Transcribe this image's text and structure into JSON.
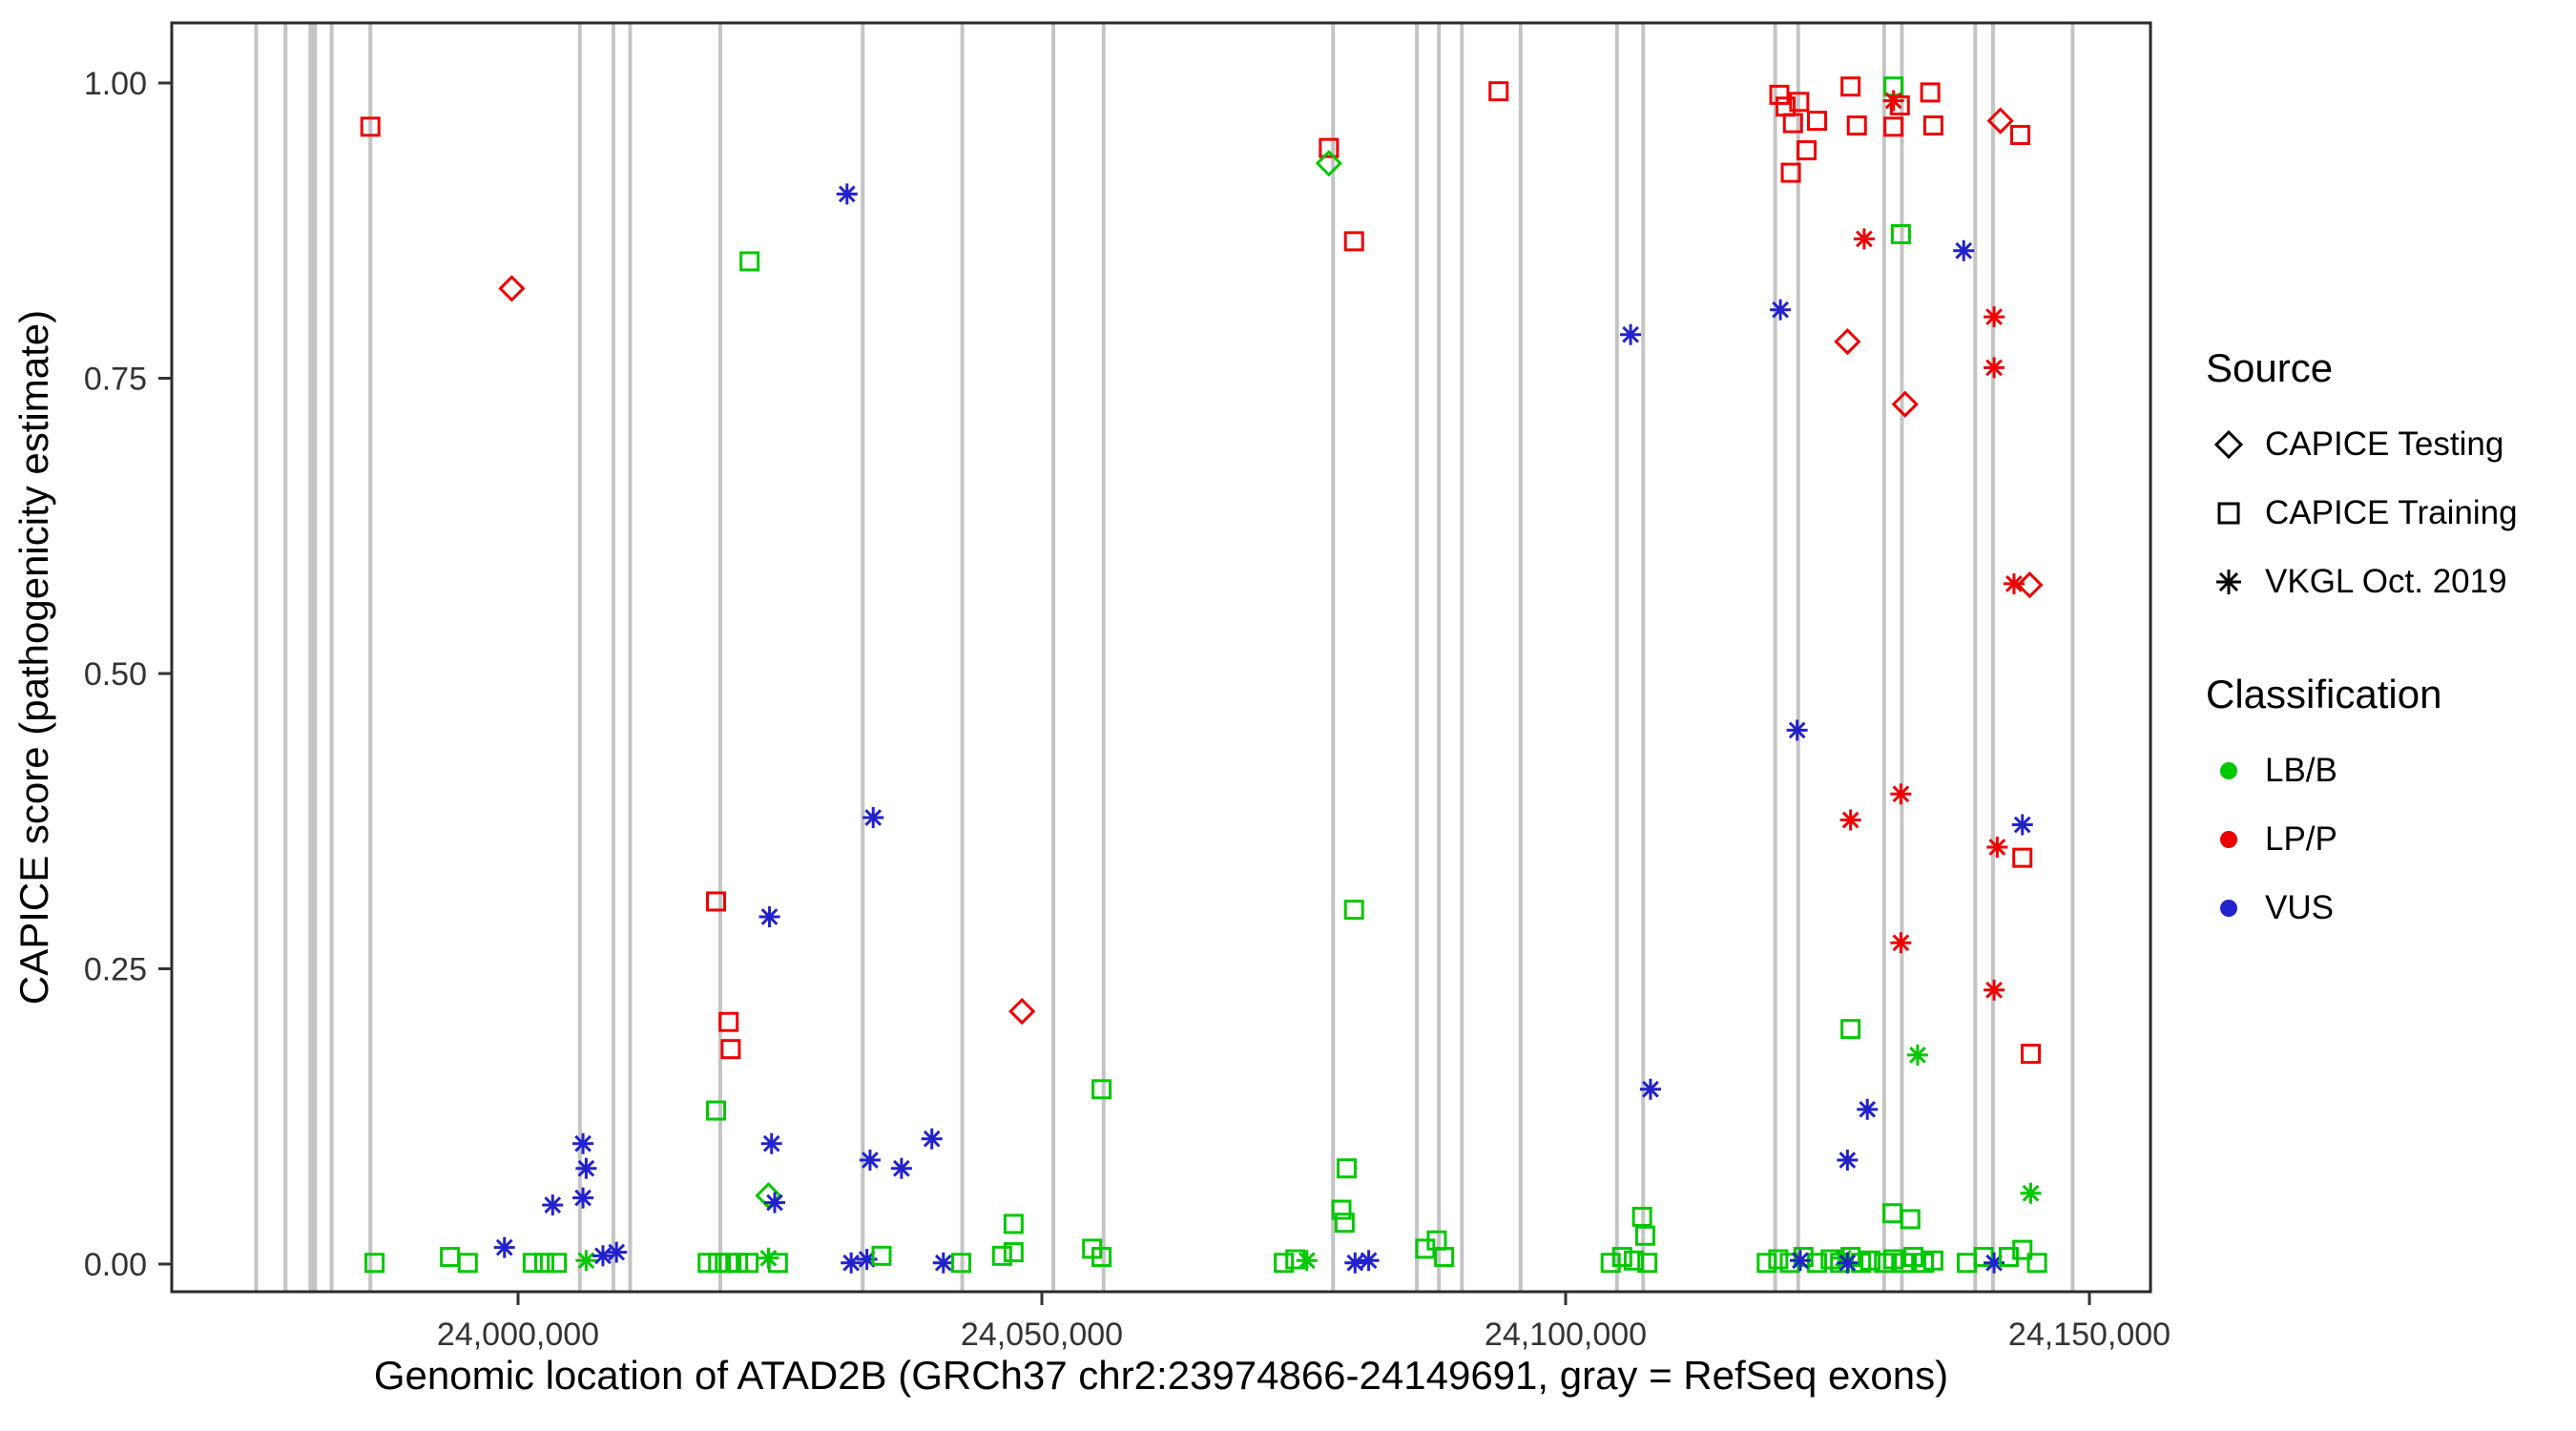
{
  "chart_data": {
    "type": "scatter",
    "title": "",
    "xlabel": "Genomic location of ATAD2B (GRCh37 chr2:23974866-24149691, gray = RefSeq exons)",
    "ylabel": "CAPICE score (pathogenicity estimate)",
    "xlim": [
      23966900,
      24155800
    ],
    "ylim": [
      -0.023,
      1.05
    ],
    "grid": false,
    "x_ticks": [
      {
        "value": 24000000,
        "label": "24,000,000"
      },
      {
        "value": 24050000,
        "label": "24,050,000"
      },
      {
        "value": 24100000,
        "label": "24,100,000"
      },
      {
        "value": 24150000,
        "label": "24,150,000"
      }
    ],
    "y_ticks": [
      {
        "value": 0.0,
        "label": "0.00"
      },
      {
        "value": 0.25,
        "label": "0.25"
      },
      {
        "value": 0.5,
        "label": "0.50"
      },
      {
        "value": 0.75,
        "label": "0.75"
      },
      {
        "value": 1.0,
        "label": "1.00"
      }
    ],
    "colors": {
      "LB/B": "#00C800",
      "LP/P": "#EE0000",
      "VUS": "#2222CC",
      "exon": "#C4C4C4"
    },
    "legend": {
      "source": {
        "title": "Source",
        "items": [
          {
            "label": "CAPICE Testing",
            "shape": "diamond"
          },
          {
            "label": "CAPICE Training",
            "shape": "square"
          },
          {
            "label": "VKGL Oct. 2019",
            "shape": "asterisk"
          }
        ]
      },
      "classification": {
        "title": "Classification",
        "items": [
          {
            "label": "LB/B",
            "color_key": "LB/B"
          },
          {
            "label": "LP/P",
            "color_key": "LP/P"
          },
          {
            "label": "VUS",
            "color_key": "VUS"
          }
        ]
      }
    },
    "exons": [
      [
        23975000,
        4
      ],
      [
        23977800,
        4
      ],
      [
        23980400,
        9
      ],
      [
        23982200,
        4
      ],
      [
        23985900,
        4
      ],
      [
        24005900,
        4
      ],
      [
        24009100,
        4
      ],
      [
        24010700,
        4
      ],
      [
        24019300,
        4
      ],
      [
        24032900,
        4
      ],
      [
        24042400,
        4
      ],
      [
        24051100,
        4
      ],
      [
        24055900,
        4
      ],
      [
        24077800,
        4
      ],
      [
        24085800,
        4
      ],
      [
        24087900,
        4
      ],
      [
        24090100,
        4
      ],
      [
        24095700,
        4
      ],
      [
        24104900,
        4
      ],
      [
        24107400,
        4
      ],
      [
        24120000,
        4
      ],
      [
        24122200,
        4
      ],
      [
        24130400,
        4
      ],
      [
        24132100,
        4
      ],
      [
        24139100,
        4
      ],
      [
        24140800,
        4
      ],
      [
        24148400,
        4
      ]
    ],
    "points": [
      [
        23985900,
        0.963,
        "training",
        "LP/P"
      ],
      [
        23999400,
        0.826,
        "testing",
        "LP/P"
      ],
      [
        24022100,
        0.849,
        "training",
        "LB/B"
      ],
      [
        24031400,
        0.906,
        "vkgl",
        "VUS"
      ],
      [
        24077400,
        0.945,
        "training",
        "LP/P"
      ],
      [
        24077400,
        0.932,
        "testing",
        "LB/B"
      ],
      [
        24079800,
        0.866,
        "training",
        "LP/P"
      ],
      [
        24093600,
        0.993,
        "training",
        "LP/P"
      ],
      [
        24120400,
        0.99,
        "training",
        "LP/P"
      ],
      [
        24121000,
        0.98,
        "training",
        "LP/P"
      ],
      [
        24122300,
        0.984,
        "training",
        "LP/P"
      ],
      [
        24121700,
        0.966,
        "training",
        "LP/P"
      ],
      [
        24121500,
        0.924,
        "training",
        "LP/P"
      ],
      [
        24124000,
        0.968,
        "training",
        "LP/P"
      ],
      [
        24123000,
        0.943,
        "training",
        "LP/P"
      ],
      [
        24127200,
        0.997,
        "training",
        "LP/P"
      ],
      [
        24127800,
        0.964,
        "training",
        "LP/P"
      ],
      [
        24131300,
        0.997,
        "training",
        "LB/B"
      ],
      [
        24131300,
        0.985,
        "vkgl",
        "LP/P"
      ],
      [
        24131900,
        0.981,
        "training",
        "LP/P"
      ],
      [
        24131300,
        0.963,
        "training",
        "LP/P"
      ],
      [
        24134800,
        0.992,
        "training",
        "LP/P"
      ],
      [
        24135100,
        0.964,
        "training",
        "LP/P"
      ],
      [
        24141500,
        0.968,
        "testing",
        "LP/P"
      ],
      [
        24143400,
        0.956,
        "training",
        "LP/P"
      ],
      [
        24128500,
        0.868,
        "vkgl",
        "LP/P"
      ],
      [
        24132000,
        0.872,
        "training",
        "LB/B"
      ],
      [
        24138000,
        0.858,
        "vkgl",
        "VUS"
      ],
      [
        24120500,
        0.808,
        "vkgl",
        "VUS"
      ],
      [
        24140900,
        0.802,
        "vkgl",
        "LP/P"
      ],
      [
        24126900,
        0.781,
        "testing",
        "LP/P"
      ],
      [
        24140900,
        0.759,
        "vkgl",
        "LP/P"
      ],
      [
        24106200,
        0.787,
        "vkgl",
        "VUS"
      ],
      [
        24132400,
        0.728,
        "testing",
        "LP/P"
      ],
      [
        24142800,
        0.576,
        "vkgl",
        "LP/P"
      ],
      [
        24144300,
        0.575,
        "testing",
        "LP/P"
      ],
      [
        24122100,
        0.452,
        "vkgl",
        "VUS"
      ],
      [
        24132000,
        0.398,
        "vkgl",
        "LP/P"
      ],
      [
        24127200,
        0.376,
        "vkgl",
        "LP/P"
      ],
      [
        24143600,
        0.372,
        "vkgl",
        "VUS"
      ],
      [
        24141200,
        0.353,
        "vkgl",
        "LP/P"
      ],
      [
        24143600,
        0.344,
        "training",
        "LP/P"
      ],
      [
        24033900,
        0.378,
        "vkgl",
        "VUS"
      ],
      [
        24018900,
        0.307,
        "training",
        "LP/P"
      ],
      [
        24079800,
        0.3,
        "training",
        "LB/B"
      ],
      [
        24024000,
        0.294,
        "vkgl",
        "VUS"
      ],
      [
        24132000,
        0.272,
        "vkgl",
        "LP/P"
      ],
      [
        24140900,
        0.232,
        "vkgl",
        "LP/P"
      ],
      [
        24048100,
        0.214,
        "testing",
        "LP/P"
      ],
      [
        24020100,
        0.205,
        "training",
        "LP/P"
      ],
      [
        24020300,
        0.182,
        "training",
        "LP/P"
      ],
      [
        24127200,
        0.199,
        "training",
        "LB/B"
      ],
      [
        24144400,
        0.178,
        "training",
        "LP/P"
      ],
      [
        24133600,
        0.177,
        "vkgl",
        "LB/B"
      ],
      [
        24018900,
        0.13,
        "training",
        "LB/B"
      ],
      [
        24055700,
        0.148,
        "training",
        "LB/B"
      ],
      [
        24108100,
        0.148,
        "vkgl",
        "VUS"
      ],
      [
        24128800,
        0.131,
        "vkgl",
        "VUS"
      ],
      [
        24006200,
        0.102,
        "vkgl",
        "VUS"
      ],
      [
        24024200,
        0.102,
        "vkgl",
        "VUS"
      ],
      [
        24039500,
        0.106,
        "vkgl",
        "VUS"
      ],
      [
        24033600,
        0.088,
        "vkgl",
        "VUS"
      ],
      [
        24036600,
        0.081,
        "vkgl",
        "VUS"
      ],
      [
        24006500,
        0.081,
        "vkgl",
        "VUS"
      ],
      [
        24126900,
        0.088,
        "vkgl",
        "VUS"
      ],
      [
        24079100,
        0.081,
        "training",
        "LB/B"
      ],
      [
        24003300,
        0.05,
        "vkgl",
        "VUS"
      ],
      [
        24006200,
        0.056,
        "vkgl",
        "VUS"
      ],
      [
        24023900,
        0.058,
        "testing",
        "LB/B"
      ],
      [
        24024500,
        0.052,
        "vkgl",
        "VUS"
      ],
      [
        24144400,
        0.06,
        "vkgl",
        "LB/B"
      ],
      [
        24078600,
        0.046,
        "training",
        "LB/B"
      ],
      [
        24078900,
        0.035,
        "training",
        "LB/B"
      ],
      [
        24107300,
        0.04,
        "training",
        "LB/B"
      ],
      [
        24107600,
        0.024,
        "training",
        "LB/B"
      ],
      [
        24047300,
        0.034,
        "training",
        "LB/B"
      ],
      [
        24131200,
        0.043,
        "training",
        "LB/B"
      ],
      [
        24132900,
        0.038,
        "training",
        "LB/B"
      ],
      [
        24087700,
        0.02,
        "training",
        "LB/B"
      ],
      [
        23986300,
        0.001,
        "training",
        "LB/B"
      ],
      [
        23993500,
        0.006,
        "training",
        "LB/B"
      ],
      [
        23995200,
        0.001,
        "training",
        "LB/B"
      ],
      [
        23998700,
        0.014,
        "vkgl",
        "VUS"
      ],
      [
        24001400,
        0.001,
        "training",
        "LB/B"
      ],
      [
        24002500,
        0.001,
        "training",
        "LB/B"
      ],
      [
        24003700,
        0.001,
        "training",
        "LB/B"
      ],
      [
        24006500,
        0.003,
        "vkgl",
        "LB/B"
      ],
      [
        24008100,
        0.007,
        "vkgl",
        "VUS"
      ],
      [
        24009400,
        0.01,
        "vkgl",
        "VUS"
      ],
      [
        24018100,
        0.001,
        "training",
        "LB/B"
      ],
      [
        24019100,
        0.001,
        "training",
        "LB/B"
      ],
      [
        24020100,
        0.001,
        "training",
        "LB/B"
      ],
      [
        24021000,
        0.001,
        "training",
        "LB/B"
      ],
      [
        24022000,
        0.001,
        "training",
        "LB/B"
      ],
      [
        24023900,
        0.005,
        "vkgl",
        "LB/B"
      ],
      [
        24024800,
        0.001,
        "training",
        "LB/B"
      ],
      [
        24031800,
        0.001,
        "vkgl",
        "VUS"
      ],
      [
        24033300,
        0.004,
        "vkgl",
        "VUS"
      ],
      [
        24034700,
        0.007,
        "training",
        "LB/B"
      ],
      [
        24040600,
        0.001,
        "vkgl",
        "VUS"
      ],
      [
        24042300,
        0.001,
        "training",
        "LB/B"
      ],
      [
        24046200,
        0.007,
        "training",
        "LB/B"
      ],
      [
        24047300,
        0.01,
        "training",
        "LB/B"
      ],
      [
        24054800,
        0.013,
        "training",
        "LB/B"
      ],
      [
        24055700,
        0.006,
        "training",
        "LB/B"
      ],
      [
        24073100,
        0.001,
        "training",
        "LB/B"
      ],
      [
        24074200,
        0.004,
        "training",
        "LB/B"
      ],
      [
        24075300,
        0.003,
        "vkgl",
        "LB/B"
      ],
      [
        24079900,
        0.001,
        "vkgl",
        "VUS"
      ],
      [
        24081200,
        0.003,
        "vkgl",
        "VUS"
      ],
      [
        24086600,
        0.013,
        "training",
        "LB/B"
      ],
      [
        24088400,
        0.006,
        "training",
        "LB/B"
      ],
      [
        24104300,
        0.001,
        "training",
        "LB/B"
      ],
      [
        24105400,
        0.006,
        "training",
        "LB/B"
      ],
      [
        24106500,
        0.003,
        "training",
        "LB/B"
      ],
      [
        24107800,
        0.001,
        "training",
        "LB/B"
      ],
      [
        24119200,
        0.001,
        "training",
        "LB/B"
      ],
      [
        24120300,
        0.004,
        "training",
        "LB/B"
      ],
      [
        24121400,
        0.001,
        "training",
        "LB/B"
      ],
      [
        24122700,
        0.006,
        "training",
        "LB/B"
      ],
      [
        24124000,
        0.001,
        "training",
        "LB/B"
      ],
      [
        24125300,
        0.004,
        "training",
        "LB/B"
      ],
      [
        24126200,
        0.001,
        "training",
        "LB/B"
      ],
      [
        24127200,
        0.006,
        "training",
        "LB/B"
      ],
      [
        24128200,
        0.001,
        "training",
        "LB/B"
      ],
      [
        24129100,
        0.003,
        "training",
        "LB/B"
      ],
      [
        24122400,
        0.003,
        "vkgl",
        "VUS"
      ],
      [
        24126500,
        0.005,
        "vkgl",
        "LB/B"
      ],
      [
        24126900,
        0.001,
        "vkgl",
        "VUS"
      ],
      [
        24130400,
        0.001,
        "training",
        "LB/B"
      ],
      [
        24131300,
        0.004,
        "training",
        "LB/B"
      ],
      [
        24132300,
        0.001,
        "training",
        "LB/B"
      ],
      [
        24133200,
        0.006,
        "training",
        "LB/B"
      ],
      [
        24134200,
        0.001,
        "training",
        "LB/B"
      ],
      [
        24135100,
        0.003,
        "training",
        "LB/B"
      ],
      [
        24138300,
        0.001,
        "training",
        "LB/B"
      ],
      [
        24139900,
        0.006,
        "training",
        "LB/B"
      ],
      [
        24140900,
        0.001,
        "vkgl",
        "VUS"
      ],
      [
        24142300,
        0.006,
        "training",
        "LB/B"
      ],
      [
        24143600,
        0.012,
        "training",
        "LB/B"
      ],
      [
        24145000,
        0.001,
        "training",
        "LB/B"
      ]
    ]
  }
}
